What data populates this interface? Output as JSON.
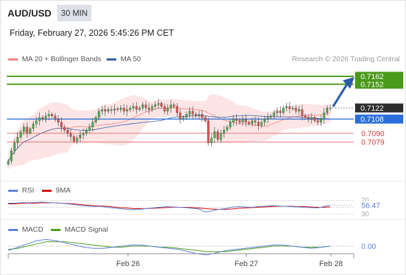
{
  "header": {
    "symbol": "AUD/USD",
    "timeframe": "30 MIN",
    "datetime": "Friday, February 27, 2026 5:45:26 PM CET"
  },
  "legend": {
    "bollinger": {
      "label": "MA 20 + Bollinger Bands",
      "color": "#f08080"
    },
    "ma50": {
      "label": "MA 50",
      "color": "#2d5aa0"
    },
    "credit": "Research © 2026 Trading Central"
  },
  "levels": {
    "resistance_2": "0.7162",
    "resistance_1": "0.7152",
    "last_price": "0.7122",
    "pivot": "0.7108",
    "support_1": "0.7090",
    "support_2": "0.7079"
  },
  "colors": {
    "up": "#4caf50",
    "down": "#d9534f",
    "resistance": "#4a9a1a",
    "pivot": "#2a6fdb",
    "support": "#e07070",
    "last": "#2d2d2d",
    "arrow": "#2a5aa8"
  },
  "rsi_panel": {
    "label": "RSI",
    "signal_label": "9MA",
    "rsi_color": "#5b7fd4",
    "signal_color": "#d00000",
    "value": "56.47",
    "upper_level": "70",
    "lower_level": "30"
  },
  "macd_panel": {
    "label": "MACD",
    "signal_label": "MACD Signal",
    "macd_color": "#5b7fd4",
    "signal_color": "#4a9a1a",
    "value": "0.00"
  },
  "chart_data": {
    "type": "candlestick",
    "x_ticks": [
      "Feb 26",
      "Feb 27",
      "Feb 28"
    ],
    "ylim": [
      0.705,
      0.7175
    ],
    "grid": false,
    "levels": [
      0.7162,
      0.7152,
      0.7122,
      0.7108,
      0.709,
      0.7079
    ],
    "close": [
      0.7055,
      0.7068,
      0.7078,
      0.7085,
      0.7092,
      0.7098,
      0.709,
      0.7096,
      0.7102,
      0.7106,
      0.711,
      0.7108,
      0.7112,
      0.7114,
      0.7112,
      0.7108,
      0.7104,
      0.7098,
      0.7094,
      0.709,
      0.7086,
      0.708,
      0.7084,
      0.7088,
      0.709,
      0.7094,
      0.7098,
      0.7104,
      0.711,
      0.7118,
      0.712,
      0.7118,
      0.712,
      0.7119,
      0.7121,
      0.712,
      0.7122,
      0.7118,
      0.712,
      0.7122,
      0.7124,
      0.712,
      0.7122,
      0.7126,
      0.7122,
      0.712,
      0.7124,
      0.7126,
      0.7128,
      0.7124,
      0.7118,
      0.7122,
      0.7126,
      0.7124,
      0.7116,
      0.7108,
      0.711,
      0.7114,
      0.7118,
      0.7114,
      0.7112,
      0.7114,
      0.711,
      0.7106,
      0.7078,
      0.7084,
      0.7092,
      0.7082,
      0.709,
      0.7094,
      0.7098,
      0.7104,
      0.7108,
      0.7106,
      0.7104,
      0.7108,
      0.7104,
      0.7102,
      0.7106,
      0.7104,
      0.71,
      0.7104,
      0.7108,
      0.711,
      0.7112,
      0.7116,
      0.7118,
      0.7116,
      0.7122,
      0.7124,
      0.7121,
      0.7122,
      0.7118,
      0.712,
      0.7112,
      0.711,
      0.7108,
      0.711,
      0.7106,
      0.7104,
      0.7108,
      0.7116,
      0.7122,
      0.7122
    ],
    "rsi": [
      62,
      62,
      64,
      63,
      64,
      65,
      64,
      63,
      62,
      60,
      58,
      55,
      54,
      52,
      53,
      50,
      48,
      46,
      44,
      43,
      44,
      46,
      48,
      50,
      52,
      51,
      50,
      49,
      47,
      45,
      36,
      40,
      44,
      46,
      50,
      52,
      51,
      50,
      52,
      53,
      55,
      54,
      53,
      52,
      51,
      50,
      49,
      48,
      52,
      56
    ],
    "rsi_ma": [
      60,
      60,
      61,
      62,
      62,
      63,
      63,
      63,
      62,
      61,
      60,
      58,
      56,
      55,
      54,
      53,
      51,
      49,
      48,
      46,
      46,
      46,
      47,
      48,
      49,
      50,
      50,
      50,
      49,
      48,
      46,
      45,
      44,
      44,
      45,
      47,
      48,
      49,
      50,
      51,
      52,
      53,
      53,
      53,
      52,
      52,
      51,
      50,
      50,
      51
    ],
    "macd": [
      -0.0004,
      -0.0001,
      0.0002,
      0.0005,
      0.0006,
      0.0005,
      0.0003,
      0.0001,
      -0.0001,
      -0.0002,
      -0.0002,
      -0.0001,
      0.0,
      0.0001,
      0.0001,
      0.0,
      -0.0001,
      -0.0002,
      -0.0003,
      -0.0005,
      -0.0007,
      -0.0008,
      -0.0006,
      -0.0004,
      -0.0003,
      -0.0002,
      -0.0001,
      0.0,
      0.0001,
      0.0001,
      0.0,
      -0.0001,
      -0.0002,
      -0.0001,
      0.0
    ],
    "macd_signal": [
      -0.0003,
      -0.0002,
      0.0,
      0.0002,
      0.0004,
      0.0004,
      0.0004,
      0.0003,
      0.0002,
      0.0001,
      0.0,
      -0.0001,
      -0.0001,
      0.0,
      0.0,
      0.0,
      -0.0001,
      -0.0001,
      -0.0002,
      -0.0003,
      -0.0004,
      -0.0005,
      -0.0005,
      -0.0005,
      -0.0004,
      -0.0003,
      -0.0002,
      -0.0001,
      0.0,
      0.0,
      0.0,
      -0.0001,
      -0.0001,
      -0.0001,
      0.0
    ]
  }
}
